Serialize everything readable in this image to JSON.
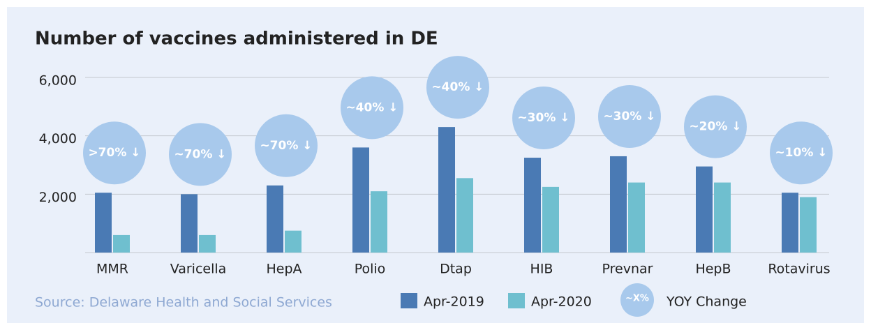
{
  "chart_data": {
    "type": "bar",
    "title": "Number of vaccines administered in DE",
    "categories": [
      "MMR",
      "Varicella",
      "HepA",
      "Polio",
      "Dtap",
      "HIB",
      "Prevnar",
      "HepB",
      "Rotavirus"
    ],
    "series": [
      {
        "name": "Apr-2019",
        "color": "#4a7ab4",
        "values": [
          2050,
          2000,
          2300,
          3600,
          4300,
          3250,
          3300,
          2950,
          2050
        ]
      },
      {
        "name": "Apr-2020",
        "color": "#6fbfcf",
        "values": [
          600,
          600,
          750,
          2100,
          2550,
          2250,
          2400,
          2400,
          1900
        ]
      }
    ],
    "ylim": [
      0,
      6000
    ],
    "yticks": [
      {
        "value": 2000,
        "label": "2,000"
      },
      {
        "value": 4000,
        "label": "4,000"
      },
      {
        "value": 6000,
        "label": "6,000"
      }
    ],
    "grid": true,
    "annotations": [
      ">70% ↓",
      "~70% ↓",
      "~70% ↓",
      "~40% ↓",
      "~40% ↓",
      "~30% ↓",
      "~30% ↓",
      "~20% ↓",
      "~10% ↓"
    ],
    "annotation_color": "#a8c9ec",
    "annotation_legend": {
      "symbol": "~X%",
      "label": "YOY Change"
    },
    "source": "Source: Delaware Health and Social Services"
  }
}
